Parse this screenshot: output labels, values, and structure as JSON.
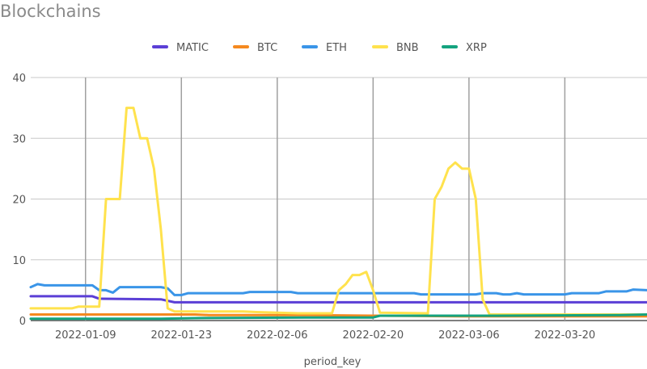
{
  "chart_data": {
    "type": "line",
    "title": "Blockchains",
    "xlabel": "period_key",
    "ylabel": "",
    "x_ticks": [
      "2022-01-09",
      "2022-01-23",
      "2022-02-06",
      "2022-02-20",
      "2022-03-06",
      "2022-03-20"
    ],
    "x_range": [
      "2022-01-01",
      "2022-04-01"
    ],
    "ylim": [
      0,
      40
    ],
    "y_ticks": [
      0,
      10,
      20,
      30,
      40
    ],
    "grid": true,
    "legend_position": "top-center",
    "series": [
      {
        "name": "MATIC",
        "color": "#5b3fd6",
        "points": [
          [
            "2022-01-01",
            4.0
          ],
          [
            "2022-01-10",
            4.0
          ],
          [
            "2022-01-11",
            3.6
          ],
          [
            "2022-01-20",
            3.5
          ],
          [
            "2022-01-22",
            3.0
          ],
          [
            "2022-04-01",
            3.0
          ]
        ]
      },
      {
        "name": "BTC",
        "color": "#f5891f",
        "points": [
          [
            "2022-01-01",
            1.0
          ],
          [
            "2022-01-25",
            1.0
          ],
          [
            "2022-01-27",
            0.9
          ],
          [
            "2022-02-10",
            0.9
          ],
          [
            "2022-02-20",
            0.8
          ],
          [
            "2022-03-05",
            0.7
          ],
          [
            "2022-04-01",
            0.7
          ]
        ]
      },
      {
        "name": "ETH",
        "color": "#3a95e8",
        "points": [
          [
            "2022-01-01",
            5.5
          ],
          [
            "2022-01-02",
            6.0
          ],
          [
            "2022-01-03",
            5.8
          ],
          [
            "2022-01-10",
            5.8
          ],
          [
            "2022-01-11",
            5.0
          ],
          [
            "2022-01-12",
            5.0
          ],
          [
            "2022-01-13",
            4.6
          ],
          [
            "2022-01-14",
            5.5
          ],
          [
            "2022-01-20",
            5.5
          ],
          [
            "2022-01-21",
            5.3
          ],
          [
            "2022-01-22",
            4.2
          ],
          [
            "2022-01-23",
            4.2
          ],
          [
            "2022-01-24",
            4.5
          ],
          [
            "2022-02-01",
            4.5
          ],
          [
            "2022-02-02",
            4.7
          ],
          [
            "2022-02-08",
            4.7
          ],
          [
            "2022-02-09",
            4.5
          ],
          [
            "2022-02-26",
            4.5
          ],
          [
            "2022-02-27",
            4.3
          ],
          [
            "2022-03-07",
            4.3
          ],
          [
            "2022-03-08",
            4.5
          ],
          [
            "2022-03-10",
            4.5
          ],
          [
            "2022-03-11",
            4.3
          ],
          [
            "2022-03-12",
            4.3
          ],
          [
            "2022-03-13",
            4.5
          ],
          [
            "2022-03-14",
            4.3
          ],
          [
            "2022-03-20",
            4.3
          ],
          [
            "2022-03-21",
            4.5
          ],
          [
            "2022-03-25",
            4.5
          ],
          [
            "2022-03-26",
            4.8
          ],
          [
            "2022-03-29",
            4.8
          ],
          [
            "2022-03-30",
            5.1
          ],
          [
            "2022-04-01",
            5.0
          ]
        ]
      },
      {
        "name": "BNB",
        "color": "#ffe24d",
        "points": [
          [
            "2022-01-01",
            2.0
          ],
          [
            "2022-01-07",
            2.0
          ],
          [
            "2022-01-08",
            2.3
          ],
          [
            "2022-01-11",
            2.3
          ],
          [
            "2022-01-12",
            20.0
          ],
          [
            "2022-01-14",
            20.0
          ],
          [
            "2022-01-15",
            35.0
          ],
          [
            "2022-01-16",
            35.0
          ],
          [
            "2022-01-17",
            30.0
          ],
          [
            "2022-01-18",
            30.0
          ],
          [
            "2022-01-19",
            25.0
          ],
          [
            "2022-01-20",
            15.0
          ],
          [
            "2022-01-21",
            2.0
          ],
          [
            "2022-01-22",
            1.5
          ],
          [
            "2022-02-01",
            1.5
          ],
          [
            "2022-02-03",
            1.4
          ],
          [
            "2022-02-09",
            1.2
          ],
          [
            "2022-02-14",
            1.2
          ],
          [
            "2022-02-15",
            5.0
          ],
          [
            "2022-02-16",
            6.0
          ],
          [
            "2022-02-17",
            7.5
          ],
          [
            "2022-02-18",
            7.5
          ],
          [
            "2022-02-19",
            8.0
          ],
          [
            "2022-02-20",
            5.0
          ],
          [
            "2022-02-21",
            1.3
          ],
          [
            "2022-02-28",
            1.2
          ],
          [
            "2022-03-01",
            20.0
          ],
          [
            "2022-03-02",
            22.0
          ],
          [
            "2022-03-03",
            25.0
          ],
          [
            "2022-03-04",
            26.0
          ],
          [
            "2022-03-05",
            25.0
          ],
          [
            "2022-03-06",
            25.0
          ],
          [
            "2022-03-07",
            20.0
          ],
          [
            "2022-03-08",
            3.5
          ],
          [
            "2022-03-09",
            1.0
          ],
          [
            "2022-04-01",
            1.0
          ]
        ]
      },
      {
        "name": "XRP",
        "color": "#14a37f",
        "points": [
          [
            "2022-01-01",
            0.3
          ],
          [
            "2022-01-20",
            0.3
          ],
          [
            "2022-01-25",
            0.4
          ],
          [
            "2022-02-10",
            0.5
          ],
          [
            "2022-02-20",
            0.5
          ],
          [
            "2022-02-21",
            0.8
          ],
          [
            "2022-03-10",
            0.8
          ],
          [
            "2022-03-28",
            0.9
          ],
          [
            "2022-04-01",
            1.0
          ]
        ]
      }
    ]
  }
}
